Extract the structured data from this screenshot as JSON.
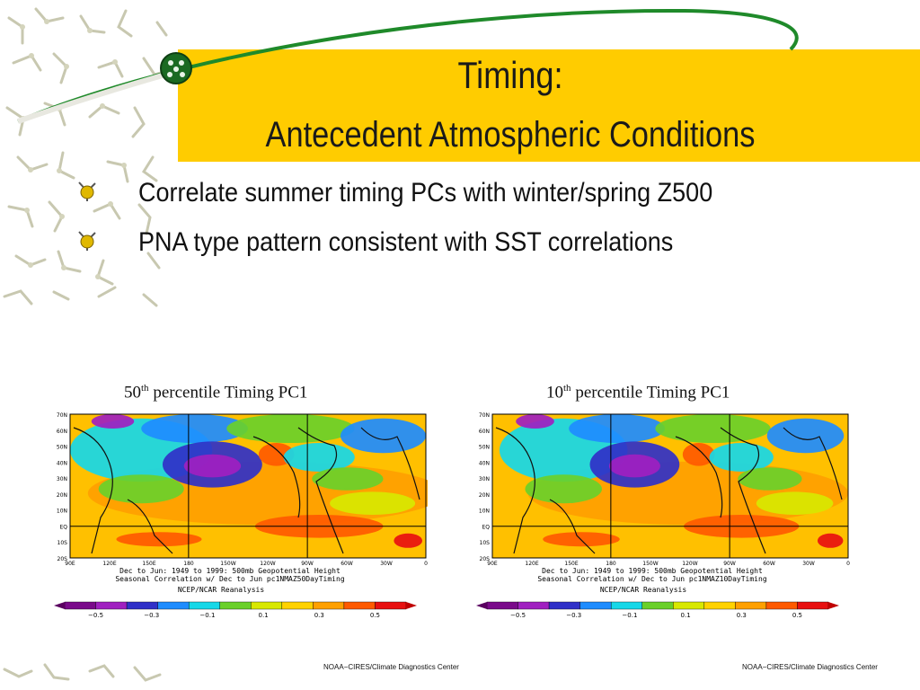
{
  "slide": {
    "title_line1": "Timing:",
    "title_line2": "Antecedent Atmospheric Conditions",
    "bullets": [
      "Correlate summer timing PCs with winter/spring Z500",
      "PNA type pattern consistent with SST correlations"
    ],
    "colors": {
      "band": "#ffcc00",
      "swoosh": "#1f8a2a"
    }
  },
  "figures": [
    {
      "caption_number": "50",
      "caption_suffix": "th",
      "caption_text": "percentile Timing PC1",
      "y_tick_labels": [
        "70N",
        "60N",
        "50N",
        "40N",
        "30N",
        "20N",
        "10N",
        "EQ",
        "10S",
        "20S"
      ],
      "x_tick_labels": [
        "90E",
        "120E",
        "150E",
        "180",
        "150W",
        "120W",
        "90W",
        "60W",
        "30W",
        "0"
      ],
      "map_line1": "Dec to Jun: 1949 to 1999: 500mb Geopotential Height",
      "map_line2": "Seasonal Correlation w/ Dec to Jun pc1NMAZ50DayTiming",
      "map_line3": "NCEP/NCAR Reanalysis",
      "colorbar_labels": [
        "−0.5",
        "−0.3",
        "−0.1",
        "0.1",
        "0.3",
        "0.5"
      ],
      "footer": "NOAA−CIRES/Climate Diagnostics Center"
    },
    {
      "caption_number": "10",
      "caption_suffix": "th",
      "caption_text": "percentile Timing PC1",
      "y_tick_labels": [
        "70N",
        "60N",
        "50N",
        "40N",
        "30N",
        "20N",
        "10N",
        "EQ",
        "10S",
        "20S"
      ],
      "x_tick_labels": [
        "90E",
        "120E",
        "150E",
        "180",
        "150W",
        "120W",
        "90W",
        "60W",
        "30W",
        "0"
      ],
      "map_line1": "Dec to Jun: 1949 to 1999: 500mb Geopotential Height",
      "map_line2": "Seasonal Correlation w/ Dec to Jun pc1NMAZ10DayTiming",
      "map_line3": "NCEP/NCAR Reanalysis",
      "colorbar_labels": [
        "−0.5",
        "−0.3",
        "−0.1",
        "0.1",
        "0.3",
        "0.5"
      ],
      "footer": "NOAA−CIRES/Climate Diagnostics Center"
    }
  ]
}
